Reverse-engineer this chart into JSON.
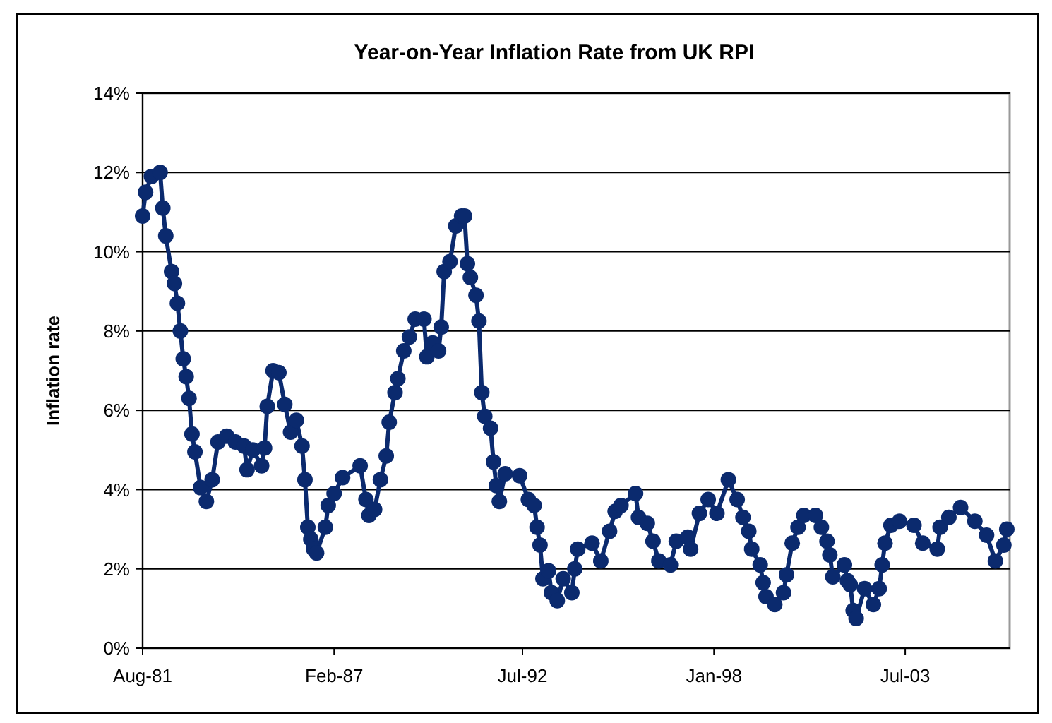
{
  "chart_data": {
    "type": "line",
    "title": "Year-on-Year Inflation Rate from UK RPI",
    "ylabel": "Inflation rate",
    "x": [
      "1981-08",
      "1981-09",
      "1981-11",
      "1982-02",
      "1982-03",
      "1982-04",
      "1982-06",
      "1982-07",
      "1982-08",
      "1982-09",
      "1982-10",
      "1982-11",
      "1982-12",
      "1983-01",
      "1983-02",
      "1983-04",
      "1983-06",
      "1983-08",
      "1983-10",
      "1984-01",
      "1984-04",
      "1984-07",
      "1984-08",
      "1984-10",
      "1985-01",
      "1985-02",
      "1985-03",
      "1985-05",
      "1985-07",
      "1985-09",
      "1985-11",
      "1986-01",
      "1986-03",
      "1986-04",
      "1986-05",
      "1986-06",
      "1986-07",
      "1986-08",
      "1986-11",
      "1986-12",
      "1987-02",
      "1987-05",
      "1987-11",
      "1988-01",
      "1988-02",
      "1988-04",
      "1988-06",
      "1988-08",
      "1988-09",
      "1988-11",
      "1988-12",
      "1989-02",
      "1989-04",
      "1989-06",
      "1989-09",
      "1989-10",
      "1989-12",
      "1990-02",
      "1990-03",
      "1990-04",
      "1990-06",
      "1990-08",
      "1990-10",
      "1990-11",
      "1990-12",
      "1991-01",
      "1991-03",
      "1991-04",
      "1991-05",
      "1991-06",
      "1991-08",
      "1991-09",
      "1991-10",
      "1991-11",
      "1992-01",
      "1992-06",
      "1992-09",
      "1992-11",
      "1992-12",
      "1993-01",
      "1993-02",
      "1993-04",
      "1993-05",
      "1993-07",
      "1993-09",
      "1993-12",
      "1994-01",
      "1994-02",
      "1994-07",
      "1994-10",
      "1995-01",
      "1995-03",
      "1995-05",
      "1995-10",
      "1995-11",
      "1996-02",
      "1996-04",
      "1996-06",
      "1996-10",
      "1996-12",
      "1997-04",
      "1997-05",
      "1997-08",
      "1997-11",
      "1998-02",
      "1998-06",
      "1998-09",
      "1998-11",
      "1999-01",
      "1999-02",
      "1999-05",
      "1999-06",
      "1999-07",
      "1999-10",
      "2000-01",
      "2000-02",
      "2000-04",
      "2000-06",
      "2000-08",
      "2000-12",
      "2001-02",
      "2001-04",
      "2001-05",
      "2001-06",
      "2001-10",
      "2001-11",
      "2001-12",
      "2002-01",
      "2002-02",
      "2002-05",
      "2002-08",
      "2002-10",
      "2002-11",
      "2002-12",
      "2003-02",
      "2003-05",
      "2003-10",
      "2004-01",
      "2004-06",
      "2004-07",
      "2004-10",
      "2005-02",
      "2005-07",
      "2005-11",
      "2006-02",
      "2006-05",
      "2006-06"
    ],
    "series": [
      {
        "color": "#0b2a6e",
        "values": [
          10.9,
          11.5,
          11.9,
          12.0,
          11.1,
          10.4,
          9.5,
          9.2,
          8.7,
          8.0,
          7.3,
          6.85,
          6.3,
          5.4,
          4.95,
          4.05,
          3.7,
          4.25,
          5.2,
          5.35,
          5.2,
          5.1,
          4.5,
          5.0,
          4.6,
          5.05,
          6.1,
          7.0,
          6.95,
          6.15,
          5.45,
          5.75,
          5.1,
          4.25,
          3.05,
          2.75,
          2.5,
          2.4,
          3.05,
          3.6,
          3.9,
          4.3,
          4.6,
          3.75,
          3.35,
          3.5,
          4.25,
          4.85,
          5.7,
          6.45,
          6.8,
          7.5,
          7.85,
          8.3,
          8.3,
          7.35,
          7.7,
          7.5,
          8.1,
          9.5,
          9.75,
          10.65,
          10.9,
          10.9,
          9.7,
          9.35,
          8.9,
          8.25,
          6.45,
          5.85,
          5.55,
          4.7,
          4.1,
          3.7,
          4.4,
          4.35,
          3.75,
          3.6,
          3.05,
          2.6,
          1.75,
          1.95,
          1.4,
          1.2,
          1.75,
          1.4,
          2.0,
          2.5,
          2.65,
          2.2,
          2.95,
          3.45,
          3.6,
          3.9,
          3.3,
          3.15,
          2.7,
          2.2,
          2.1,
          2.7,
          2.8,
          2.5,
          3.4,
          3.75,
          3.4,
          4.25,
          3.75,
          3.3,
          2.95,
          2.5,
          2.1,
          1.65,
          1.3,
          1.1,
          1.4,
          1.85,
          2.65,
          3.05,
          3.35,
          3.35,
          3.05,
          2.7,
          2.35,
          1.8,
          2.1,
          1.7,
          1.6,
          0.95,
          0.75,
          1.5,
          1.1,
          1.5,
          2.1,
          2.65,
          3.1,
          3.2,
          3.1,
          2.65,
          2.5,
          3.05,
          3.3,
          3.55,
          3.2,
          2.85,
          2.2,
          2.6,
          3.0
        ]
      }
    ],
    "xlim": [
      "1981-08",
      "2006-07"
    ],
    "xticks": [
      {
        "value": "1981-08",
        "label": "Aug-81"
      },
      {
        "value": "1987-02",
        "label": "Feb-87"
      },
      {
        "value": "1992-07",
        "label": "Jul-92"
      },
      {
        "value": "1998-01",
        "label": "Jan-98"
      },
      {
        "value": "2003-07",
        "label": "Jul-03"
      }
    ],
    "ylim": [
      0,
      14
    ],
    "yticks": [
      {
        "value": 0,
        "label": "0%"
      },
      {
        "value": 2,
        "label": "2%"
      },
      {
        "value": 4,
        "label": "4%"
      },
      {
        "value": 6,
        "label": "6%"
      },
      {
        "value": 8,
        "label": "8%"
      },
      {
        "value": 10,
        "label": "10%"
      },
      {
        "value": 12,
        "label": "12%"
      },
      {
        "value": 14,
        "label": "14%"
      }
    ],
    "grid": "y",
    "marker": "circle",
    "line_style": "solid"
  }
}
